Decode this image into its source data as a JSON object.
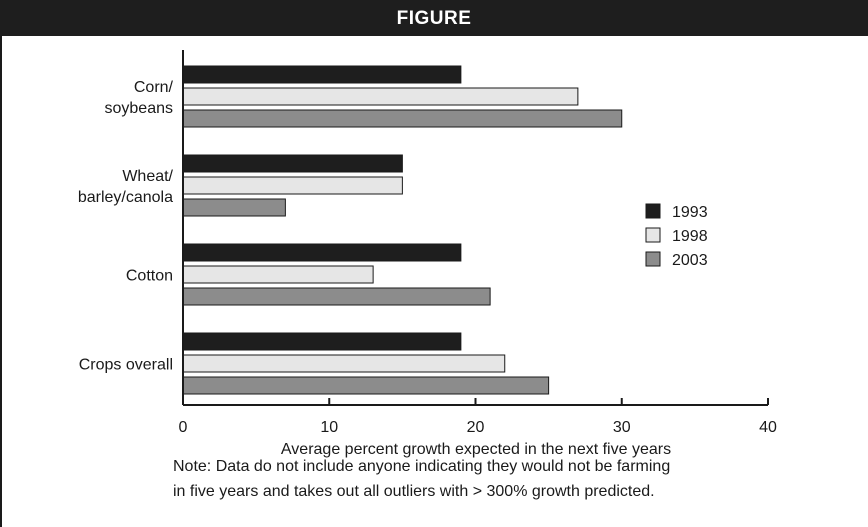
{
  "header": {
    "title": "FIGURE"
  },
  "chart_data": {
    "type": "bar",
    "orientation": "horizontal",
    "categories": [
      [
        "Corn/",
        "soybeans"
      ],
      [
        "Wheat/",
        "barley/canola"
      ],
      [
        "Cotton"
      ],
      [
        "Crops overall"
      ]
    ],
    "series": [
      {
        "name": "1993",
        "color": "#1e1e1e",
        "values": [
          19,
          15,
          19,
          19
        ]
      },
      {
        "name": "1998",
        "color": "#e6e6e6",
        "values": [
          27,
          15,
          13,
          22
        ]
      },
      {
        "name": "2003",
        "color": "#8c8c8c",
        "values": [
          30,
          7,
          21,
          25
        ]
      }
    ],
    "xlim": [
      0,
      40
    ],
    "xticks": [
      "0",
      "10",
      "20",
      "30",
      "40"
    ],
    "xlabel": "Average percent growth expected in the next five years",
    "legend_position": "right",
    "grid": false
  },
  "notes": [
    "Note: Data do not include anyone indicating they would not be farming",
    "in five years and takes out all outliers with > 300% growth predicted."
  ]
}
